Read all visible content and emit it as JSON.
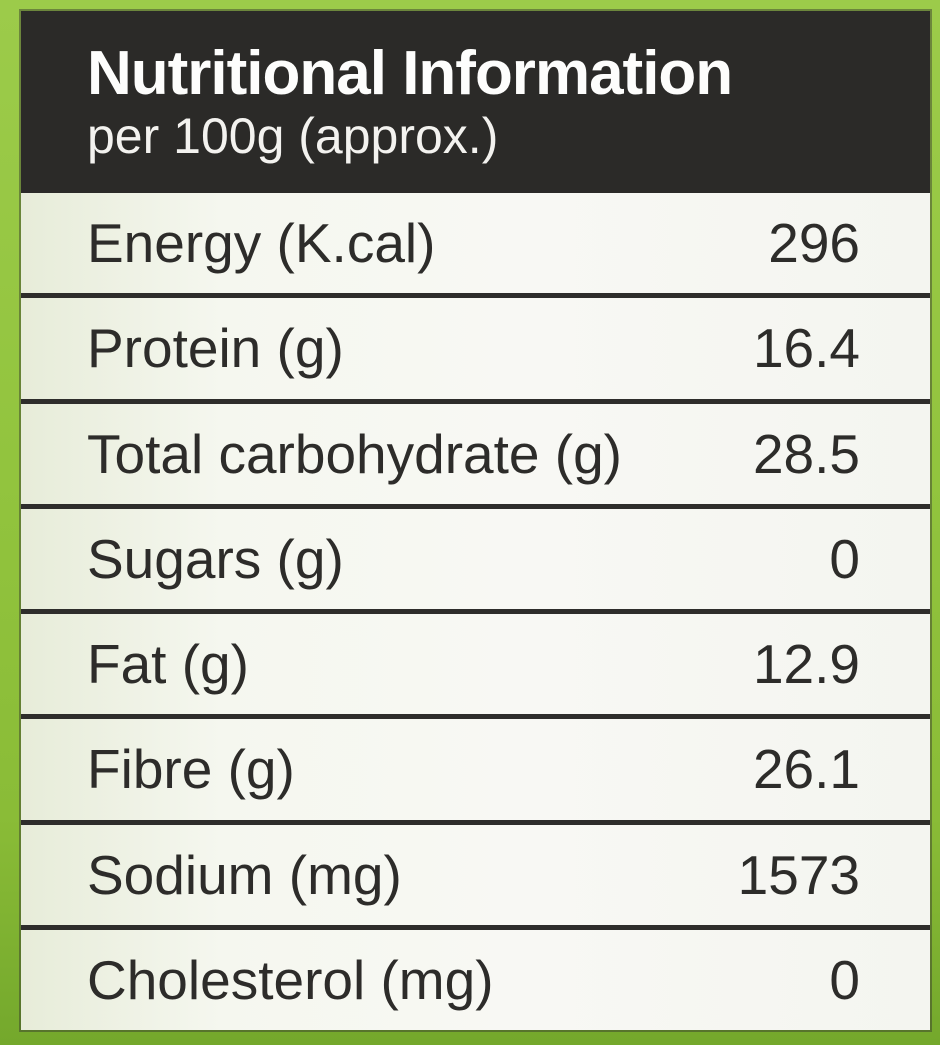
{
  "label": {
    "title": "Nutritional Information",
    "subtitle": "per 100g (approx.)",
    "rows": [
      {
        "name": "Energy (K.cal)",
        "value": "296"
      },
      {
        "name": "Protein (g)",
        "value": "16.4"
      },
      {
        "name": "Total carbohydrate (g)",
        "value": "28.5"
      },
      {
        "name": "Sugars (g)",
        "value": "0"
      },
      {
        "name": "Fat (g)",
        "value": "12.9"
      },
      {
        "name": "Fibre (g)",
        "value": "26.1"
      },
      {
        "name": "Sodium (mg)",
        "value": "1573"
      },
      {
        "name": "Cholesterol (mg)",
        "value": "0"
      }
    ],
    "colors": {
      "border_green": "#92c43e",
      "border_green_dark": "#74a82c",
      "header_bg": "#2b2a28",
      "header_text": "#fdfdfc",
      "row_bg": "#f5f6f1",
      "row_text": "#2d2c2a",
      "divider": "#2e2d2b"
    }
  }
}
